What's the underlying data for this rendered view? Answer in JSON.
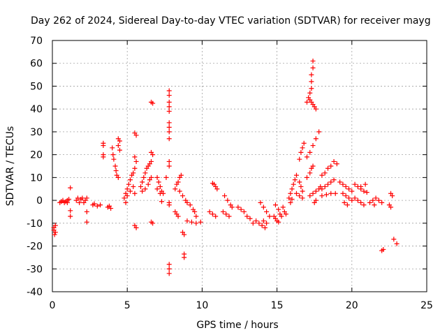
{
  "chart_data": {
    "type": "scatter",
    "title": "Day 262 of 2024, Sidereal Day-to-day VTEC variation (SDTVAR) for receiver mayg",
    "xlabel": "GPS time / hours",
    "ylabel": "SDTVAR / TECUs",
    "xlim": [
      0,
      25
    ],
    "ylim": [
      -40,
      70
    ],
    "xticks": [
      "0",
      "5",
      "10",
      "15",
      "20",
      "25"
    ],
    "yticks": [
      "-40",
      "-30",
      "-20",
      "-10",
      "0",
      "10",
      "20",
      "30",
      "40",
      "50",
      "60",
      "70"
    ],
    "grid": true,
    "marker": "+",
    "color": "#ff0000",
    "series": [
      {
        "name": "SDTVAR",
        "points": [
          [
            0.1,
            -12
          ],
          [
            0.1,
            -13
          ],
          [
            0.15,
            -15
          ],
          [
            0.2,
            -11
          ],
          [
            0.2,
            -14
          ],
          [
            0.5,
            -1
          ],
          [
            0.6,
            -0.5
          ],
          [
            0.7,
            0
          ],
          [
            0.8,
            -1
          ],
          [
            0.9,
            -0.5
          ],
          [
            1.0,
            0
          ],
          [
            1.0,
            -1
          ],
          [
            1.1,
            0.5
          ],
          [
            1.2,
            5.5
          ],
          [
            1.2,
            -4.5
          ],
          [
            1.2,
            -7
          ],
          [
            1.6,
            0
          ],
          [
            1.7,
            1
          ],
          [
            1.8,
            -1
          ],
          [
            1.9,
            0.5
          ],
          [
            2.0,
            1
          ],
          [
            2.1,
            -1
          ],
          [
            2.2,
            0
          ],
          [
            2.3,
            1
          ],
          [
            2.3,
            -5
          ],
          [
            2.3,
            -9.5
          ],
          [
            2.7,
            -2
          ],
          [
            2.8,
            -1.5
          ],
          [
            3.0,
            -2.5
          ],
          [
            3.2,
            -2
          ],
          [
            3.4,
            25
          ],
          [
            3.4,
            24
          ],
          [
            3.4,
            20
          ],
          [
            3.4,
            19
          ],
          [
            3.7,
            -3
          ],
          [
            3.8,
            -2.5
          ],
          [
            3.9,
            -3.5
          ],
          [
            4.0,
            23
          ],
          [
            4.05,
            20
          ],
          [
            4.1,
            18
          ],
          [
            4.2,
            15
          ],
          [
            4.25,
            13
          ],
          [
            4.3,
            11
          ],
          [
            4.4,
            10
          ],
          [
            4.4,
            27
          ],
          [
            4.5,
            26
          ],
          [
            4.4,
            24
          ],
          [
            4.5,
            22
          ],
          [
            4.8,
            1
          ],
          [
            4.9,
            3
          ],
          [
            5.0,
            5
          ],
          [
            5.1,
            7
          ],
          [
            5.2,
            9
          ],
          [
            5.3,
            11
          ],
          [
            5.4,
            12
          ],
          [
            4.9,
            -1
          ],
          [
            5.0,
            2
          ],
          [
            5.2,
            4
          ],
          [
            5.4,
            6
          ],
          [
            5.5,
            3
          ],
          [
            5.5,
            29.5
          ],
          [
            5.6,
            28.5
          ],
          [
            5.5,
            19
          ],
          [
            5.6,
            17
          ],
          [
            5.5,
            14
          ],
          [
            5.5,
            -11
          ],
          [
            5.6,
            -12
          ],
          [
            5.9,
            6
          ],
          [
            6.0,
            8
          ],
          [
            6.1,
            10
          ],
          [
            6.2,
            12
          ],
          [
            6.3,
            14
          ],
          [
            6.4,
            15
          ],
          [
            6.5,
            16
          ],
          [
            6.6,
            17
          ],
          [
            6.0,
            4
          ],
          [
            6.2,
            5
          ],
          [
            6.4,
            7
          ],
          [
            6.5,
            9
          ],
          [
            6.6,
            10
          ],
          [
            6.6,
            43
          ],
          [
            6.7,
            42.5
          ],
          [
            6.6,
            21
          ],
          [
            6.7,
            20
          ],
          [
            6.6,
            -9.5
          ],
          [
            6.7,
            -10
          ],
          [
            7.0,
            10
          ],
          [
            7.1,
            8
          ],
          [
            7.2,
            6
          ],
          [
            7.3,
            4
          ],
          [
            7.4,
            3
          ],
          [
            7.0,
            5
          ],
          [
            7.2,
            3
          ],
          [
            7.6,
            10
          ],
          [
            7.3,
            -0.5
          ],
          [
            7.8,
            48
          ],
          [
            7.8,
            46
          ],
          [
            7.8,
            43
          ],
          [
            7.8,
            41
          ],
          [
            7.8,
            39
          ],
          [
            7.8,
            34
          ],
          [
            7.8,
            32
          ],
          [
            7.8,
            30
          ],
          [
            7.8,
            27
          ],
          [
            7.8,
            17
          ],
          [
            7.8,
            15
          ],
          [
            7.8,
            -1
          ],
          [
            7.8,
            -2
          ],
          [
            7.8,
            -28
          ],
          [
            7.8,
            -30
          ],
          [
            7.8,
            -32
          ],
          [
            8.2,
            -5
          ],
          [
            8.3,
            -6
          ],
          [
            8.4,
            -7
          ],
          [
            8.2,
            5
          ],
          [
            8.3,
            7
          ],
          [
            8.4,
            8
          ],
          [
            8.5,
            10
          ],
          [
            8.6,
            11
          ],
          [
            8.5,
            4
          ],
          [
            8.7,
            2
          ],
          [
            8.9,
            0
          ],
          [
            8.7,
            -14
          ],
          [
            8.8,
            -15
          ],
          [
            8.8,
            -23.5
          ],
          [
            8.8,
            -25
          ],
          [
            9.0,
            -1
          ],
          [
            9.2,
            -2
          ],
          [
            9.4,
            -4
          ],
          [
            9.5,
            -5
          ],
          [
            9.6,
            -7
          ],
          [
            9.0,
            -9
          ],
          [
            9.3,
            -9.5
          ],
          [
            9.6,
            -10
          ],
          [
            9.9,
            -9.5
          ],
          [
            10.5,
            -5
          ],
          [
            10.7,
            -6
          ],
          [
            10.9,
            -7
          ],
          [
            10.7,
            7.5
          ],
          [
            10.8,
            7
          ],
          [
            10.9,
            6
          ],
          [
            11.0,
            5
          ],
          [
            11.4,
            -5
          ],
          [
            11.6,
            -6
          ],
          [
            11.8,
            -7
          ],
          [
            11.5,
            2
          ],
          [
            11.7,
            0
          ],
          [
            11.9,
            -2
          ],
          [
            12.0,
            -3
          ],
          [
            12.4,
            -3
          ],
          [
            12.6,
            -4
          ],
          [
            12.8,
            -5
          ],
          [
            13.0,
            -7
          ],
          [
            13.2,
            -8
          ],
          [
            13.4,
            -10
          ],
          [
            13.6,
            -9
          ],
          [
            13.8,
            -10
          ],
          [
            14.0,
            -11
          ],
          [
            14.2,
            -12
          ],
          [
            14.1,
            -9
          ],
          [
            14.3,
            -10
          ],
          [
            13.9,
            -1
          ],
          [
            14.1,
            -3
          ],
          [
            14.3,
            -5
          ],
          [
            14.5,
            -7
          ],
          [
            14.8,
            -7
          ],
          [
            14.9,
            -8
          ],
          [
            15.0,
            -9
          ],
          [
            15.1,
            -9.5
          ],
          [
            14.9,
            -2
          ],
          [
            15.1,
            -4
          ],
          [
            15.2,
            -6
          ],
          [
            15.3,
            -7
          ],
          [
            15.4,
            -3
          ],
          [
            15.5,
            -5
          ],
          [
            15.6,
            -6
          ],
          [
            15.8,
            1
          ],
          [
            15.9,
            3
          ],
          [
            16.0,
            5
          ],
          [
            16.1,
            7
          ],
          [
            16.2,
            9
          ],
          [
            16.3,
            11
          ],
          [
            15.9,
            -1
          ],
          [
            16.0,
            0.5
          ],
          [
            16.5,
            18
          ],
          [
            16.6,
            21
          ],
          [
            16.7,
            23
          ],
          [
            16.8,
            25
          ],
          [
            16.5,
            8
          ],
          [
            16.6,
            6
          ],
          [
            16.7,
            4
          ],
          [
            16.3,
            3
          ],
          [
            16.5,
            2
          ],
          [
            16.7,
            1
          ],
          [
            17.0,
            43
          ],
          [
            17.1,
            45
          ],
          [
            17.2,
            47
          ],
          [
            17.3,
            49
          ],
          [
            17.3,
            52
          ],
          [
            17.3,
            55
          ],
          [
            17.4,
            58
          ],
          [
            17.4,
            61
          ],
          [
            17.2,
            44
          ],
          [
            17.3,
            43
          ],
          [
            17.4,
            42
          ],
          [
            17.5,
            41
          ],
          [
            17.6,
            40
          ],
          [
            17.0,
            19
          ],
          [
            17.2,
            21
          ],
          [
            17.4,
            24
          ],
          [
            17.6,
            27
          ],
          [
            17.8,
            30
          ],
          [
            17.0,
            10
          ],
          [
            17.2,
            12
          ],
          [
            17.3,
            14
          ],
          [
            17.4,
            15
          ],
          [
            17.2,
            2
          ],
          [
            17.4,
            3
          ],
          [
            17.6,
            4
          ],
          [
            17.8,
            5
          ],
          [
            17.9,
            6
          ],
          [
            17.5,
            -1
          ],
          [
            17.6,
            0
          ],
          [
            18.0,
            11
          ],
          [
            18.2,
            12
          ],
          [
            18.4,
            14
          ],
          [
            18.6,
            15
          ],
          [
            18.8,
            17
          ],
          [
            19.0,
            16
          ],
          [
            18.0,
            5
          ],
          [
            18.2,
            6
          ],
          [
            18.4,
            7
          ],
          [
            18.6,
            8
          ],
          [
            18.8,
            9
          ],
          [
            18.0,
            2
          ],
          [
            18.3,
            2.5
          ],
          [
            18.6,
            3
          ],
          [
            18.9,
            3
          ],
          [
            19.2,
            8
          ],
          [
            19.4,
            7
          ],
          [
            19.6,
            6
          ],
          [
            19.8,
            5
          ],
          [
            20.0,
            4
          ],
          [
            19.4,
            3
          ],
          [
            19.6,
            2
          ],
          [
            19.8,
            1
          ],
          [
            20.0,
            0
          ],
          [
            19.5,
            -1
          ],
          [
            19.7,
            -2
          ],
          [
            20.2,
            7
          ],
          [
            20.4,
            6
          ],
          [
            20.6,
            5
          ],
          [
            20.8,
            4
          ],
          [
            20.2,
            1
          ],
          [
            20.4,
            0
          ],
          [
            20.6,
            -1
          ],
          [
            20.8,
            -2
          ],
          [
            20.6,
            6
          ],
          [
            20.9,
            7
          ],
          [
            21.0,
            3.5
          ],
          [
            21.2,
            -1
          ],
          [
            21.4,
            0
          ],
          [
            21.6,
            1
          ],
          [
            21.8,
            0
          ],
          [
            22.0,
            -1
          ],
          [
            21.5,
            -2
          ],
          [
            22.0,
            -22
          ],
          [
            22.1,
            -21.5
          ],
          [
            22.6,
            3
          ],
          [
            22.7,
            2
          ],
          [
            22.5,
            -2
          ],
          [
            22.6,
            -3
          ],
          [
            22.8,
            -17
          ],
          [
            23.0,
            -19
          ]
        ]
      }
    ]
  }
}
